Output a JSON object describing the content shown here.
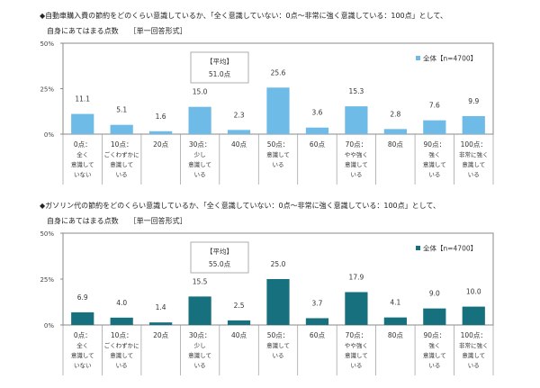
{
  "chart_data": [
    {
      "type": "bar",
      "title": "◆自動車購入費の節約をどのくらい意識しているか、「全く意識していない：0点～非常に強く意識している：100点」として、",
      "subtitle": "自身にあてはまる点数　　［単一回答形式］",
      "categories": [
        [
          "0点：",
          "全く",
          "意識して",
          "いない"
        ],
        [
          "10点：",
          "ごくわずかに",
          "意識して",
          "いる"
        ],
        [
          "20点"
        ],
        [
          "30点：",
          "少し",
          "意識して",
          "いる"
        ],
        [
          "40点"
        ],
        [
          "50点：",
          "意識して",
          "いる"
        ],
        [
          "60点"
        ],
        [
          "70点：",
          "やや強く",
          "意識して",
          "いる"
        ],
        [
          "80点"
        ],
        [
          "90点：",
          "強く",
          "意識して",
          "いる"
        ],
        [
          "100点：",
          "非常に強く",
          "意識して",
          "いる"
        ]
      ],
      "series": [
        {
          "name": "全体【n=4700】",
          "values": [
            11.1,
            5.1,
            1.6,
            15.0,
            2.3,
            25.6,
            3.6,
            15.3,
            2.8,
            7.6,
            9.9
          ]
        }
      ],
      "value_labels": [
        "11.1",
        "5.1",
        "1.6",
        "15.0",
        "2.3",
        "25.6",
        "3.6",
        "15.3",
        "2.8",
        "7.6",
        "9.9"
      ],
      "yticks": [
        "0%",
        "25%",
        "50%"
      ],
      "ylim": [
        0,
        50
      ],
      "average_label": "【平均】",
      "average_value": "51.0点",
      "color": "#6dbbe6",
      "legend_position": "top-right",
      "grid": false
    },
    {
      "type": "bar",
      "title": "◆ガソリン代の節約をどのくらい意識しているか、「全く意識していない：0点～非常に強く意識している：100点」として、",
      "subtitle": "自身にあてはまる点数　　［単一回答形式］",
      "categories": [
        [
          "0点：",
          "全く",
          "意識して",
          "いない"
        ],
        [
          "10点：",
          "ごくわずかに",
          "意識して",
          "いる"
        ],
        [
          "20点"
        ],
        [
          "30点：",
          "少し",
          "意識して",
          "いる"
        ],
        [
          "40点"
        ],
        [
          "50点：",
          "意識して",
          "いる"
        ],
        [
          "60点"
        ],
        [
          "70点：",
          "やや強く",
          "意識して",
          "いる"
        ],
        [
          "80点"
        ],
        [
          "90点：",
          "強く",
          "意識して",
          "いる"
        ],
        [
          "100点：",
          "非常に強く",
          "意識して",
          "いる"
        ]
      ],
      "series": [
        {
          "name": "全体【n=4700】",
          "values": [
            6.9,
            4.0,
            1.4,
            15.5,
            2.5,
            25.0,
            3.7,
            17.9,
            4.1,
            9.0,
            10.0
          ]
        }
      ],
      "value_labels": [
        "6.9",
        "4.0",
        "1.4",
        "15.5",
        "2.5",
        "25.0",
        "3.7",
        "17.9",
        "4.1",
        "9.0",
        "10.0"
      ],
      "yticks": [
        "0%",
        "25%",
        "50%"
      ],
      "ylim": [
        0,
        50
      ],
      "average_label": "【平均】",
      "average_value": "55.0点",
      "color": "#17707d",
      "legend_position": "top-right",
      "grid": false
    }
  ]
}
